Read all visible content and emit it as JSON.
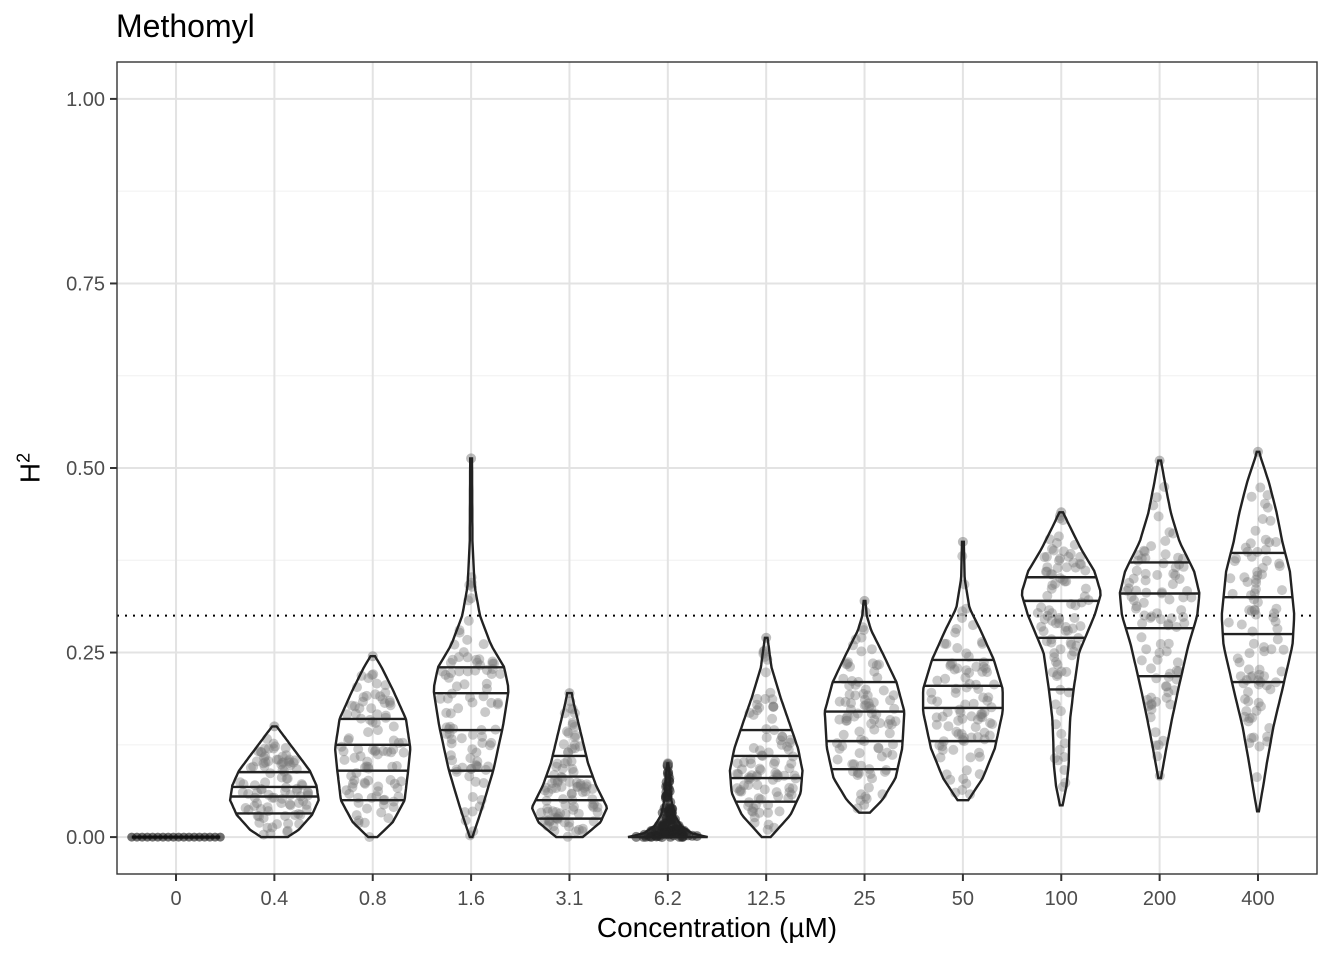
{
  "chart_data": {
    "type": "violin",
    "title": "Methomyl",
    "xlabel": "Concentration (µM)",
    "ylabel": "H",
    "ylabel_superscript": "2",
    "ylim": [
      -0.05,
      1.05
    ],
    "yticks": [
      0.0,
      0.25,
      0.5,
      0.75,
      1.0
    ],
    "ytick_labels": [
      "0.00",
      "0.25",
      "0.50",
      "0.75",
      "1.00"
    ],
    "threshold_line": 0.3,
    "categories": [
      "0",
      "0.4",
      "0.8",
      "1.6",
      "3.1",
      "6.2",
      "12.5",
      "25",
      "50",
      "100",
      "200",
      "400"
    ],
    "violins": [
      {
        "category": "0",
        "min": 0.0,
        "max": 0.0,
        "quantiles": [],
        "profile": [
          [
            0.0,
            1.0
          ]
        ]
      },
      {
        "category": "0.4",
        "min": 0.0,
        "max": 0.15,
        "quantiles": [
          0.032,
          0.055,
          0.068,
          0.088
        ],
        "profile": [
          [
            0.0,
            0.3
          ],
          [
            0.01,
            0.55
          ],
          [
            0.03,
            0.85
          ],
          [
            0.05,
            1.0
          ],
          [
            0.07,
            0.95
          ],
          [
            0.09,
            0.8
          ],
          [
            0.11,
            0.55
          ],
          [
            0.13,
            0.3
          ],
          [
            0.15,
            0.05
          ]
        ]
      },
      {
        "category": "0.8",
        "min": 0.0,
        "max": 0.245,
        "quantiles": [
          0.05,
          0.09,
          0.125,
          0.16
        ],
        "profile": [
          [
            0.0,
            0.1
          ],
          [
            0.02,
            0.45
          ],
          [
            0.05,
            0.72
          ],
          [
            0.09,
            0.8
          ],
          [
            0.12,
            0.85
          ],
          [
            0.16,
            0.75
          ],
          [
            0.2,
            0.45
          ],
          [
            0.23,
            0.2
          ],
          [
            0.245,
            0.05
          ]
        ]
      },
      {
        "category": "1.6",
        "min": 0.0,
        "max": 0.513,
        "quantiles": [
          0.09,
          0.145,
          0.195,
          0.23
        ],
        "profile": [
          [
            0.0,
            0.03
          ],
          [
            0.04,
            0.25
          ],
          [
            0.09,
            0.5
          ],
          [
            0.15,
            0.72
          ],
          [
            0.2,
            0.85
          ],
          [
            0.23,
            0.75
          ],
          [
            0.26,
            0.45
          ],
          [
            0.3,
            0.2
          ],
          [
            0.34,
            0.08
          ],
          [
            0.4,
            0.03
          ],
          [
            0.513,
            0.02
          ]
        ]
      },
      {
        "category": "3.1",
        "min": 0.0,
        "max": 0.195,
        "quantiles": [
          0.025,
          0.05,
          0.082,
          0.11
        ],
        "profile": [
          [
            0.0,
            0.3
          ],
          [
            0.02,
            0.7
          ],
          [
            0.04,
            0.85
          ],
          [
            0.07,
            0.6
          ],
          [
            0.1,
            0.42
          ],
          [
            0.13,
            0.3
          ],
          [
            0.16,
            0.18
          ],
          [
            0.18,
            0.1
          ],
          [
            0.195,
            0.05
          ]
        ]
      },
      {
        "category": "6.2",
        "min": 0.0,
        "max": 0.1,
        "quantiles": [],
        "profile": [
          [
            0.0,
            0.9
          ],
          [
            0.005,
            0.55
          ],
          [
            0.015,
            0.3
          ],
          [
            0.03,
            0.15
          ],
          [
            0.05,
            0.08
          ],
          [
            0.07,
            0.05
          ],
          [
            0.09,
            0.03
          ],
          [
            0.1,
            0.01
          ]
        ]
      },
      {
        "category": "12.5",
        "min": 0.0,
        "max": 0.27,
        "quantiles": [
          0.048,
          0.08,
          0.11,
          0.145
        ],
        "profile": [
          [
            0.0,
            0.1
          ],
          [
            0.03,
            0.55
          ],
          [
            0.06,
            0.78
          ],
          [
            0.09,
            0.82
          ],
          [
            0.12,
            0.72
          ],
          [
            0.15,
            0.55
          ],
          [
            0.19,
            0.32
          ],
          [
            0.23,
            0.12
          ],
          [
            0.27,
            0.03
          ]
        ]
      },
      {
        "category": "25",
        "min": 0.033,
        "max": 0.32,
        "quantiles": [
          0.092,
          0.13,
          0.17,
          0.21
        ],
        "profile": [
          [
            0.033,
            0.12
          ],
          [
            0.05,
            0.4
          ],
          [
            0.08,
            0.7
          ],
          [
            0.12,
            0.85
          ],
          [
            0.17,
            0.9
          ],
          [
            0.21,
            0.72
          ],
          [
            0.25,
            0.4
          ],
          [
            0.28,
            0.15
          ],
          [
            0.3,
            0.05
          ],
          [
            0.32,
            0.02
          ]
        ]
      },
      {
        "category": "50",
        "min": 0.05,
        "max": 0.4,
        "quantiles": [
          0.13,
          0.175,
          0.205,
          0.24
        ],
        "profile": [
          [
            0.05,
            0.12
          ],
          [
            0.08,
            0.45
          ],
          [
            0.12,
            0.72
          ],
          [
            0.17,
            0.9
          ],
          [
            0.2,
            0.9
          ],
          [
            0.24,
            0.7
          ],
          [
            0.28,
            0.4
          ],
          [
            0.31,
            0.15
          ],
          [
            0.35,
            0.04
          ],
          [
            0.4,
            0.02
          ]
        ]
      },
      {
        "category": "100",
        "min": 0.043,
        "max": 0.44,
        "quantiles": [
          0.2,
          0.27,
          0.32,
          0.352
        ],
        "profile": [
          [
            0.043,
            0.03
          ],
          [
            0.07,
            0.12
          ],
          [
            0.1,
            0.17
          ],
          [
            0.13,
            0.18
          ],
          [
            0.16,
            0.2
          ],
          [
            0.2,
            0.28
          ],
          [
            0.25,
            0.4
          ],
          [
            0.3,
            0.75
          ],
          [
            0.33,
            0.9
          ],
          [
            0.36,
            0.75
          ],
          [
            0.39,
            0.45
          ],
          [
            0.42,
            0.2
          ],
          [
            0.44,
            0.04
          ]
        ]
      },
      {
        "category": "200",
        "min": 0.08,
        "max": 0.51,
        "quantiles": [
          0.218,
          0.283,
          0.33,
          0.372
        ],
        "profile": [
          [
            0.08,
            0.03
          ],
          [
            0.12,
            0.15
          ],
          [
            0.16,
            0.28
          ],
          [
            0.2,
            0.42
          ],
          [
            0.26,
            0.65
          ],
          [
            0.3,
            0.85
          ],
          [
            0.33,
            0.9
          ],
          [
            0.36,
            0.78
          ],
          [
            0.4,
            0.45
          ],
          [
            0.44,
            0.25
          ],
          [
            0.48,
            0.12
          ],
          [
            0.51,
            0.03
          ]
        ]
      },
      {
        "category": "400",
        "min": 0.035,
        "max": 0.522,
        "quantiles": [
          0.21,
          0.275,
          0.325,
          0.385
        ],
        "profile": [
          [
            0.035,
            0.02
          ],
          [
            0.07,
            0.12
          ],
          [
            0.1,
            0.2
          ],
          [
            0.15,
            0.35
          ],
          [
            0.2,
            0.55
          ],
          [
            0.26,
            0.78
          ],
          [
            0.3,
            0.82
          ],
          [
            0.36,
            0.72
          ],
          [
            0.4,
            0.55
          ],
          [
            0.44,
            0.42
          ],
          [
            0.48,
            0.25
          ],
          [
            0.52,
            0.03
          ]
        ]
      }
    ]
  }
}
